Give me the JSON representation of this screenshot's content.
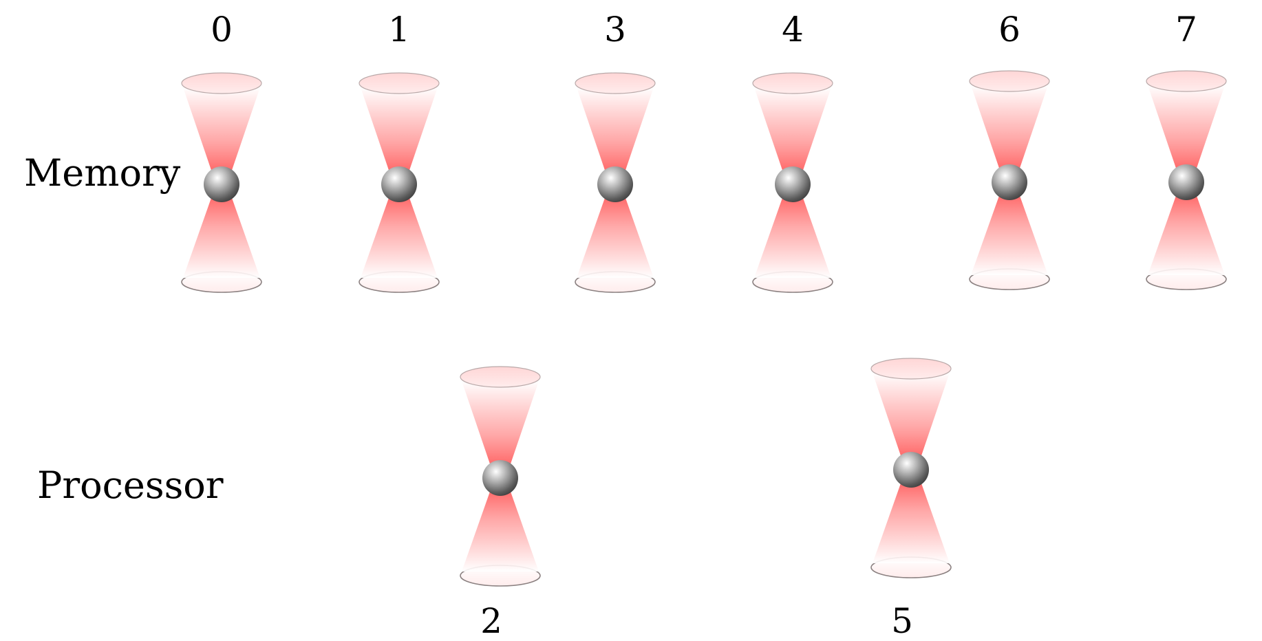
{
  "rows": {
    "memory": {
      "label": "Memory"
    },
    "processor": {
      "label": "Processor"
    }
  },
  "sites": [
    {
      "index": "0",
      "zone": "memory"
    },
    {
      "index": "1",
      "zone": "memory"
    },
    {
      "index": "3",
      "zone": "memory"
    },
    {
      "index": "4",
      "zone": "memory"
    },
    {
      "index": "6",
      "zone": "memory"
    },
    {
      "index": "7",
      "zone": "memory"
    },
    {
      "index": "2",
      "zone": "processor"
    },
    {
      "index": "5",
      "zone": "processor"
    }
  ],
  "colors": {
    "beam": "#ff5a5a",
    "beam_light": "#ffe8e8",
    "atom": "#6e6e6e",
    "rim": "#8a8080"
  }
}
